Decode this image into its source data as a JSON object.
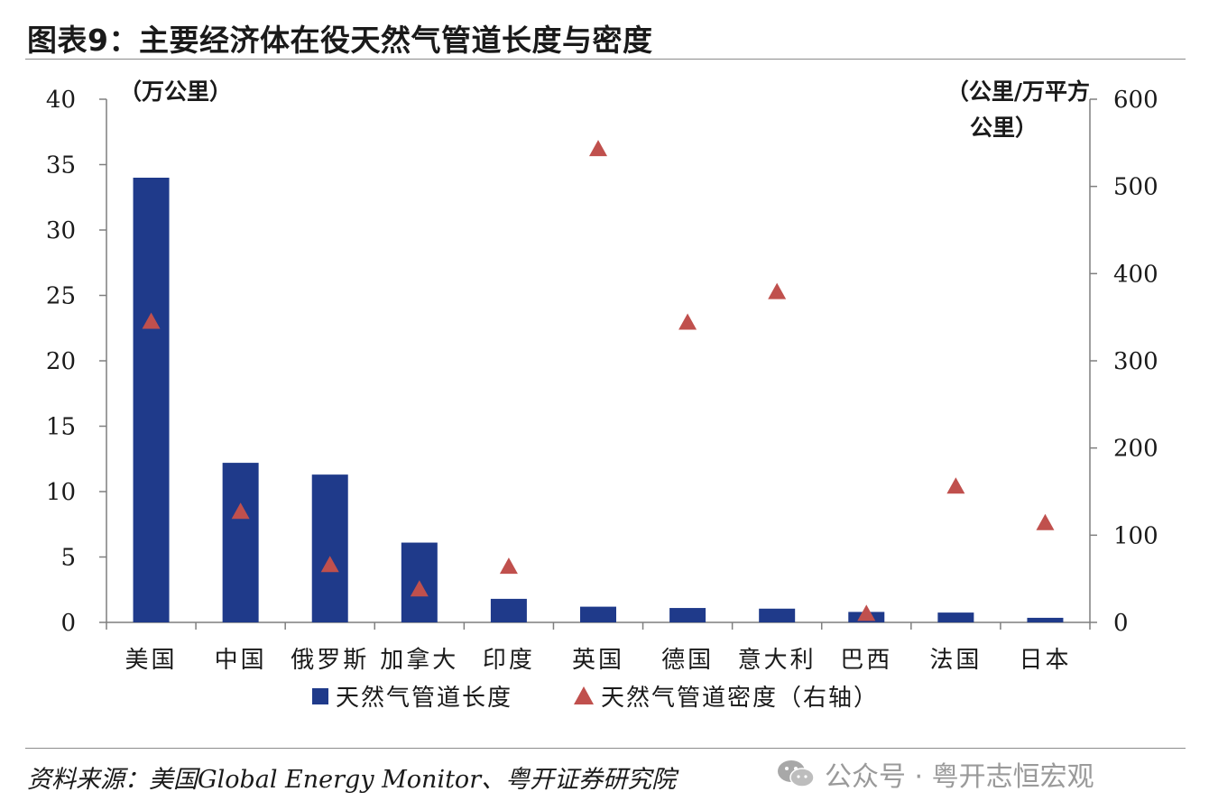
{
  "header": {
    "title": "图表9：主要经济体在役天然气管道长度与密度"
  },
  "footer": {
    "source": "资料来源：美国Global Energy Monitor、粤开证券研究院",
    "watermark": "公众号 · 粤开志恒宏观",
    "watermark_icon": "wechat-icon"
  },
  "chart_data": {
    "type": "bar",
    "title": "图表9：主要经济体在役天然气管道长度与密度",
    "categories": [
      "美国",
      "中国",
      "俄罗斯",
      "加拿大",
      "印度",
      "英国",
      "德国",
      "意大利",
      "巴西",
      "法国",
      "日本"
    ],
    "series": [
      {
        "name": "天然气管道长度",
        "type": "bar",
        "axis": "left",
        "values": [
          34.0,
          12.2,
          11.3,
          6.1,
          1.8,
          1.2,
          1.1,
          1.05,
          0.8,
          0.75,
          0.35
        ],
        "color": "#1f3a8a"
      },
      {
        "name": "天然气管道密度（右轴）",
        "type": "scatter",
        "marker": "triangle",
        "axis": "right",
        "values": [
          345,
          127,
          66,
          38,
          64,
          543,
          344,
          379,
          10,
          156,
          114
        ],
        "color": "#c0504d"
      }
    ],
    "y_left": {
      "label": "（万公里）",
      "ylim": [
        0,
        40
      ],
      "ticks": [
        0,
        5,
        10,
        15,
        20,
        25,
        30,
        35,
        40
      ]
    },
    "y_right": {
      "label_line1": "（公里/万平方",
      "label_line2": "公里）",
      "ylim": [
        0,
        600
      ],
      "ticks": [
        0,
        100,
        200,
        300,
        400,
        500,
        600
      ]
    },
    "legend": {
      "placement": "bottom",
      "entries": [
        "天然气管道长度",
        "天然气管道密度（右轴）"
      ]
    },
    "grid": false
  }
}
